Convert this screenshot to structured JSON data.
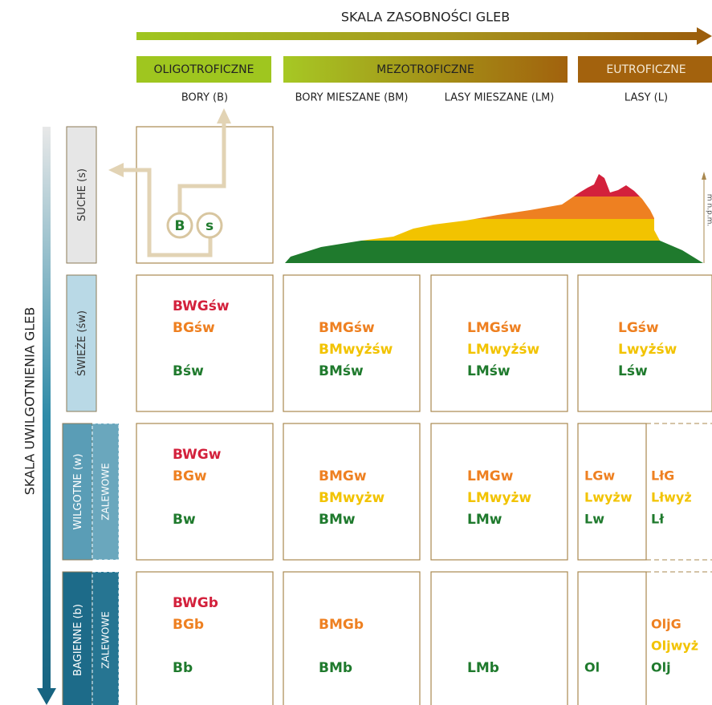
{
  "header": {
    "title": "SKALA ZASOBNOŚCI GLEB",
    "groups": [
      "OLIGOTROFICZNE",
      "MEZOTROFICZNE",
      "EUTROFICZNE"
    ],
    "columns": [
      "BORY (B)",
      "BORY MIESZANE (BM)",
      "LASY MIESZANE (LM)",
      "LASY (L)"
    ]
  },
  "side": {
    "title": "SKALA UWILGOTNIENIA GLEB"
  },
  "palette": [
    "#d3213c",
    "#ee8021",
    "#f2c300",
    "#1f7a2d"
  ],
  "dry_cell": {
    "symbols": [
      "B",
      "s"
    ],
    "profile_label": "m n.p.m."
  },
  "rows": [
    {
      "label": "SUCHE (s)"
    },
    {
      "label": "ŚWIEŻE (św)",
      "cells": [
        [
          {
            "text": "BWGśw",
            "color": "#d3213c"
          },
          {
            "text": "BGśw",
            "color": "#ee8021"
          },
          {
            "text": "Bśw",
            "color": "#1f7a2d"
          }
        ],
        [
          {
            "text": "BMGśw",
            "color": "#ee8021"
          },
          {
            "text": "BMwyżśw",
            "color": "#f2c300"
          },
          {
            "text": "BMśw",
            "color": "#1f7a2d"
          }
        ],
        [
          {
            "text": "LMGśw",
            "color": "#ee8021"
          },
          {
            "text": "LMwyżśw",
            "color": "#f2c300"
          },
          {
            "text": "LMśw",
            "color": "#1f7a2d"
          }
        ],
        [
          {
            "text": "LGśw",
            "color": "#ee8021"
          },
          {
            "text": "Lwyżśw",
            "color": "#f2c300"
          },
          {
            "text": "Lśw",
            "color": "#1f7a2d"
          }
        ]
      ]
    },
    {
      "label": "WILGOTNE (w)",
      "sublabel": "ZALEWOWE",
      "cells": [
        [
          {
            "text": "BWGw",
            "color": "#d3213c"
          },
          {
            "text": "BGw",
            "color": "#ee8021"
          },
          {
            "text": "Bw",
            "color": "#1f7a2d"
          }
        ],
        [
          {
            "text": "BMGw",
            "color": "#ee8021"
          },
          {
            "text": "BMwyżw",
            "color": "#f2c300"
          },
          {
            "text": "BMw",
            "color": "#1f7a2d"
          }
        ],
        [
          {
            "text": "LMGw",
            "color": "#ee8021"
          },
          {
            "text": "LMwyżw",
            "color": "#f2c300"
          },
          {
            "text": "LMw",
            "color": "#1f7a2d"
          }
        ],
        [
          {
            "text": "LGw",
            "color": "#ee8021"
          },
          {
            "text": "Lwyżw",
            "color": "#f2c300"
          },
          {
            "text": "Lw",
            "color": "#1f7a2d"
          }
        ],
        [
          {
            "text": "LłG",
            "color": "#ee8021"
          },
          {
            "text": "Lłwyż",
            "color": "#f2c300"
          },
          {
            "text": "Lł",
            "color": "#1f7a2d"
          }
        ]
      ]
    },
    {
      "label": "BAGIENNE (b)",
      "sublabel": "ZALEWOWE",
      "cells": [
        [
          {
            "text": "BWGb",
            "color": "#d3213c"
          },
          {
            "text": "BGb",
            "color": "#ee8021"
          },
          {
            "text": "Bb",
            "color": "#1f7a2d"
          }
        ],
        [
          {
            "text": "BMGb",
            "color": "#ee8021"
          },
          {
            "text": "BMb",
            "color": "#1f7a2d"
          }
        ],
        [
          {
            "text": "LMb",
            "color": "#1f7a2d"
          }
        ],
        [
          {
            "text": "Ol",
            "color": "#1f7a2d"
          }
        ],
        [
          {
            "text": "OljG",
            "color": "#ee8021"
          },
          {
            "text": "Oljwyż",
            "color": "#f2c300"
          },
          {
            "text": "Olj",
            "color": "#1f7a2d"
          }
        ]
      ]
    }
  ]
}
